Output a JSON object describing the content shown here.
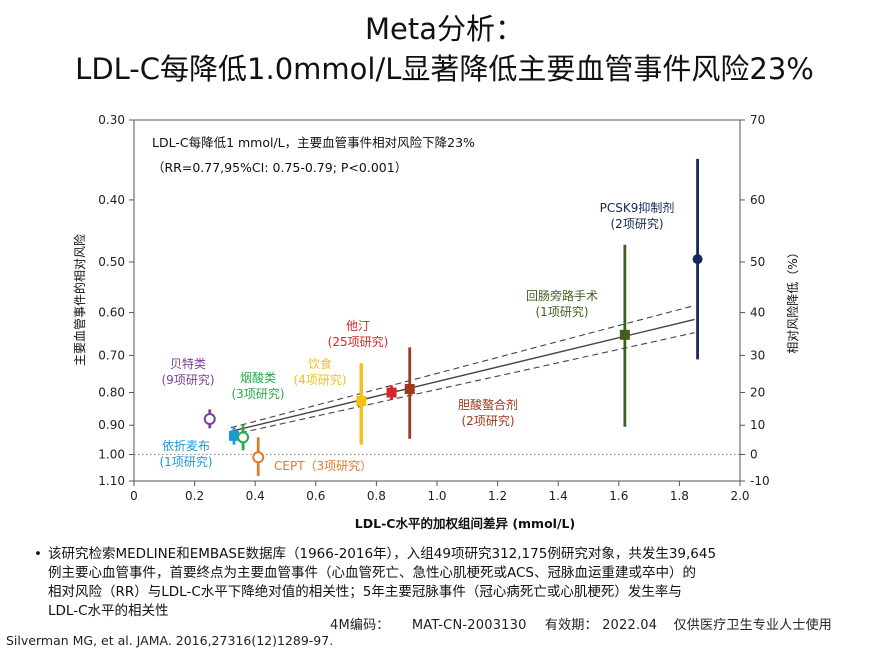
{
  "title_line1": "Meta分析：",
  "title_line2": "LDL-C每降低1.0mmol/L显著降低主要血管事件风险23%",
  "chart_data": {
    "type": "scatter",
    "xlabel": "LDL-C水平的加权组间差异 (mmol/L)",
    "ylabel": "主要血管事件的相对风险",
    "y2label": "相对风险降低（%）",
    "xlim": [
      0,
      2.0
    ],
    "x_ticks": [
      "0",
      "0.2",
      "0.4",
      "0.6",
      "0.8",
      "1.0",
      "1.2",
      "1.4",
      "1.6",
      "1.8",
      "2.0"
    ],
    "y_ticks": [
      "0.30",
      "0.40",
      "0.50",
      "0.60",
      "0.70",
      "0.80",
      "0.90",
      "1.00",
      "1.10"
    ],
    "y2_ticks": [
      "70",
      "60",
      "50",
      "40",
      "30",
      "20",
      "10",
      "0",
      "-10"
    ],
    "annotation_line1": "LDL-C每降低1 mmol/L，主要血管事件相对风险下降23%",
    "annotation_line2": "（RR=0.77,95%CI: 0.75-0.79; P<0.001）",
    "regression": {
      "x_start": 0.32,
      "x_end": 1.85,
      "rr_start": 0.92,
      "rr_end": 0.615,
      "ci_upper_end": 0.585,
      "ci_lower_end": 0.645,
      "ci_width_start": 0.012
    },
    "points": [
      {
        "label": "贝特类",
        "sublabel": "(9项研究)",
        "x": 0.25,
        "rr": 0.88,
        "lo": 0.85,
        "hi": 0.91,
        "color": "#7b3f9e",
        "marker": "open-circle"
      },
      {
        "label": "依折麦布",
        "sublabel": "(1项研究)",
        "x": 0.33,
        "rr": 0.935,
        "lo": 0.905,
        "hi": 0.965,
        "color": "#1b9ad6",
        "marker": "square"
      },
      {
        "label": "烟酸类",
        "sublabel": "(3项研究)",
        "x": 0.36,
        "rr": 0.94,
        "lo": 0.9,
        "hi": 0.985,
        "color": "#2ca84a",
        "marker": "open-circle"
      },
      {
        "label": "CEPT",
        "sublabel": "(3项研究)",
        "x": 0.41,
        "rr": 1.01,
        "lo": 0.94,
        "hi": 1.08,
        "color": "#e07b2a",
        "marker": "open-circle"
      },
      {
        "label": "饮食",
        "sublabel": "(4项研究)",
        "x": 0.75,
        "rr": 0.825,
        "lo": 0.72,
        "hi": 0.965,
        "color": "#f2c21b",
        "marker": "square"
      },
      {
        "label": "他汀",
        "sublabel": "(25项研究)",
        "x": 0.85,
        "rr": 0.8,
        "lo": 0.78,
        "hi": 0.82,
        "color": "#d62728",
        "marker": "square"
      },
      {
        "label": "胆酸螯合剂",
        "sublabel": "(2项研究)",
        "x": 0.91,
        "rr": 0.79,
        "lo": 0.68,
        "hi": 0.945,
        "color": "#9b3a1c",
        "marker": "square"
      },
      {
        "label": "回肠旁路手术",
        "sublabel": "(1项研究)",
        "x": 1.62,
        "rr": 0.65,
        "lo": 0.47,
        "hi": 0.905,
        "color": "#3f5f20",
        "marker": "square"
      },
      {
        "label": "PCSK9抑制剂",
        "sublabel": "(2项研究)",
        "x": 1.86,
        "rr": 0.495,
        "lo": 0.345,
        "hi": 0.71,
        "color": "#14275e",
        "marker": "circle"
      }
    ]
  },
  "bullet_text": [
    "该研究检索MEDLINE和EMBASE数据库（1966-2016年），入组49项研究312,175例研究对象，共发生39,645",
    "例主要心血管事件，首要终点为主要血管事件（心血管死亡、急性心肌梗死或ACS、冠脉血运重建或卒中）的",
    "相对风险（RR）与LDL-C水平下降绝对值的相关性；5年主要冠脉事件（冠心病死亡或心肌梗死）发生率与",
    "LDL-C水平的相关性"
  ],
  "code_label": "4M编码：",
  "code_value": "MAT-CN-2003130",
  "validity_label": "有效期：",
  "validity_value": "2022.04",
  "restriction": "仅供医疗卫生专业人士使用",
  "citation": "Silverman MG, et al. JAMA. 2016,27316(12)1289-97."
}
